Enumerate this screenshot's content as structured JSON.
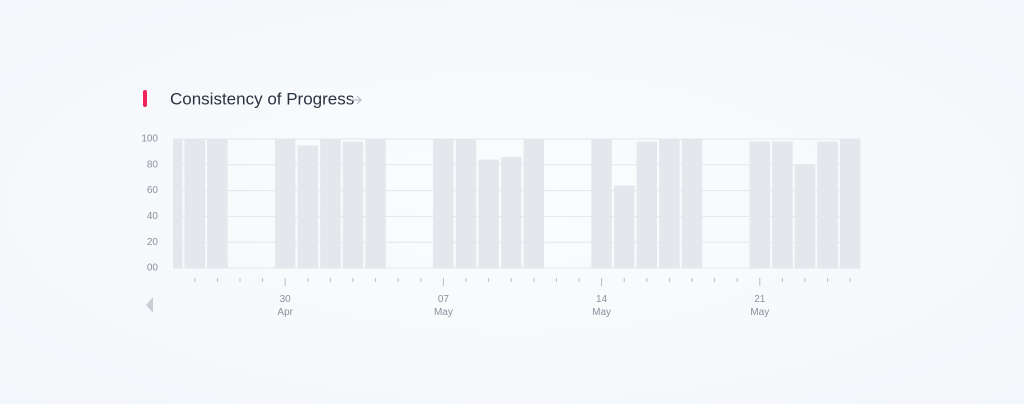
{
  "chart_data": {
    "type": "bar",
    "title": "Consistency of Progress",
    "categories": [
      null,
      null,
      null,
      null,
      null,
      "30 Apr",
      null,
      null,
      null,
      null,
      null,
      null,
      "07 May",
      null,
      null,
      null,
      null,
      null,
      null,
      "14 May",
      null,
      null,
      null,
      null,
      null,
      null,
      "21 May",
      null,
      null,
      null,
      null
    ],
    "values": [
      100,
      100,
      100,
      null,
      null,
      100,
      95,
      100,
      98,
      100,
      null,
      null,
      100,
      100,
      84,
      86,
      100,
      null,
      null,
      100,
      64,
      98,
      100,
      100,
      null,
      null,
      98,
      98,
      80,
      98,
      100
    ],
    "color": "#e4e7eb",
    "ylim": [
      0,
      100
    ],
    "yticks": [
      {
        "value": 0,
        "label": "00"
      },
      20,
      40,
      60,
      80,
      100
    ],
    "grid": true
  }
}
